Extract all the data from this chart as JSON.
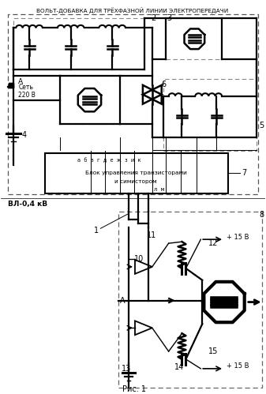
{
  "title": "ВОЛЬТ-ДОБАВКА ДЛЯ ТРЁХФАЗНОЙ ЛИНИИ ЭЛЕКТРОПЕРЕДАЧИ",
  "fig_caption": "Рис. 1",
  "label_vl": "ВЛ-0,4 кВ",
  "label_set": "Сеть\n220 В",
  "label_A_top": "А",
  "label_A_bottom": "А",
  "label_1": "1",
  "label_2": "2",
  "label_3": "3",
  "label_4": "4",
  "label_5": "5",
  "label_6": "6",
  "label_7": "7",
  "label_8": "8",
  "label_10": "10",
  "label_11": "11",
  "label_12": "12",
  "label_13": "13",
  "label_14": "14",
  "label_15": "15",
  "label_plus15_top": "+ 15 В",
  "label_plus15_bot": "+ 15 В",
  "block_text_line1": "Блок управления транзисторами",
  "block_text_line2": "и симистором",
  "block_letters_top": "а  б  в  г  д  е  ж  з  и  к",
  "block_letters_bot": "л  м",
  "bg_color": "#ffffff"
}
